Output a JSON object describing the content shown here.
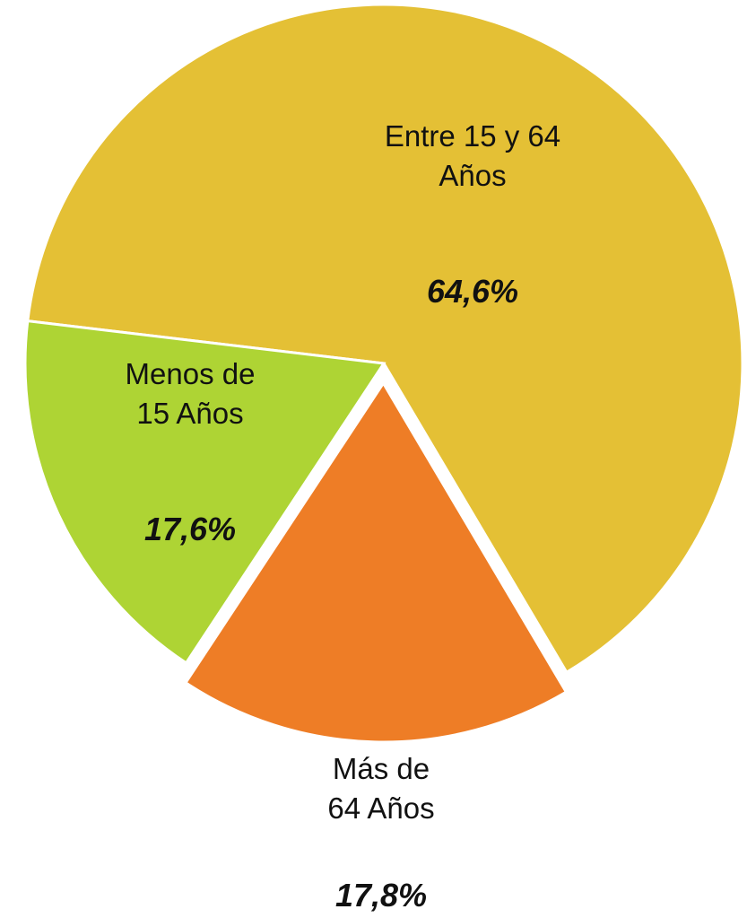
{
  "chart_data": {
    "type": "pie",
    "categories": [
      "Entre 15 y 64 Años",
      "Más de 64 Años",
      "Menos de 15 Años"
    ],
    "values": [
      64.6,
      17.8,
      17.6
    ],
    "value_labels": [
      "64,6%",
      "17,8%",
      "17,6%"
    ],
    "colors": [
      "#E4C035",
      "#EE7D26",
      "#AED434"
    ],
    "exploded": [
      false,
      true,
      false
    ]
  }
}
